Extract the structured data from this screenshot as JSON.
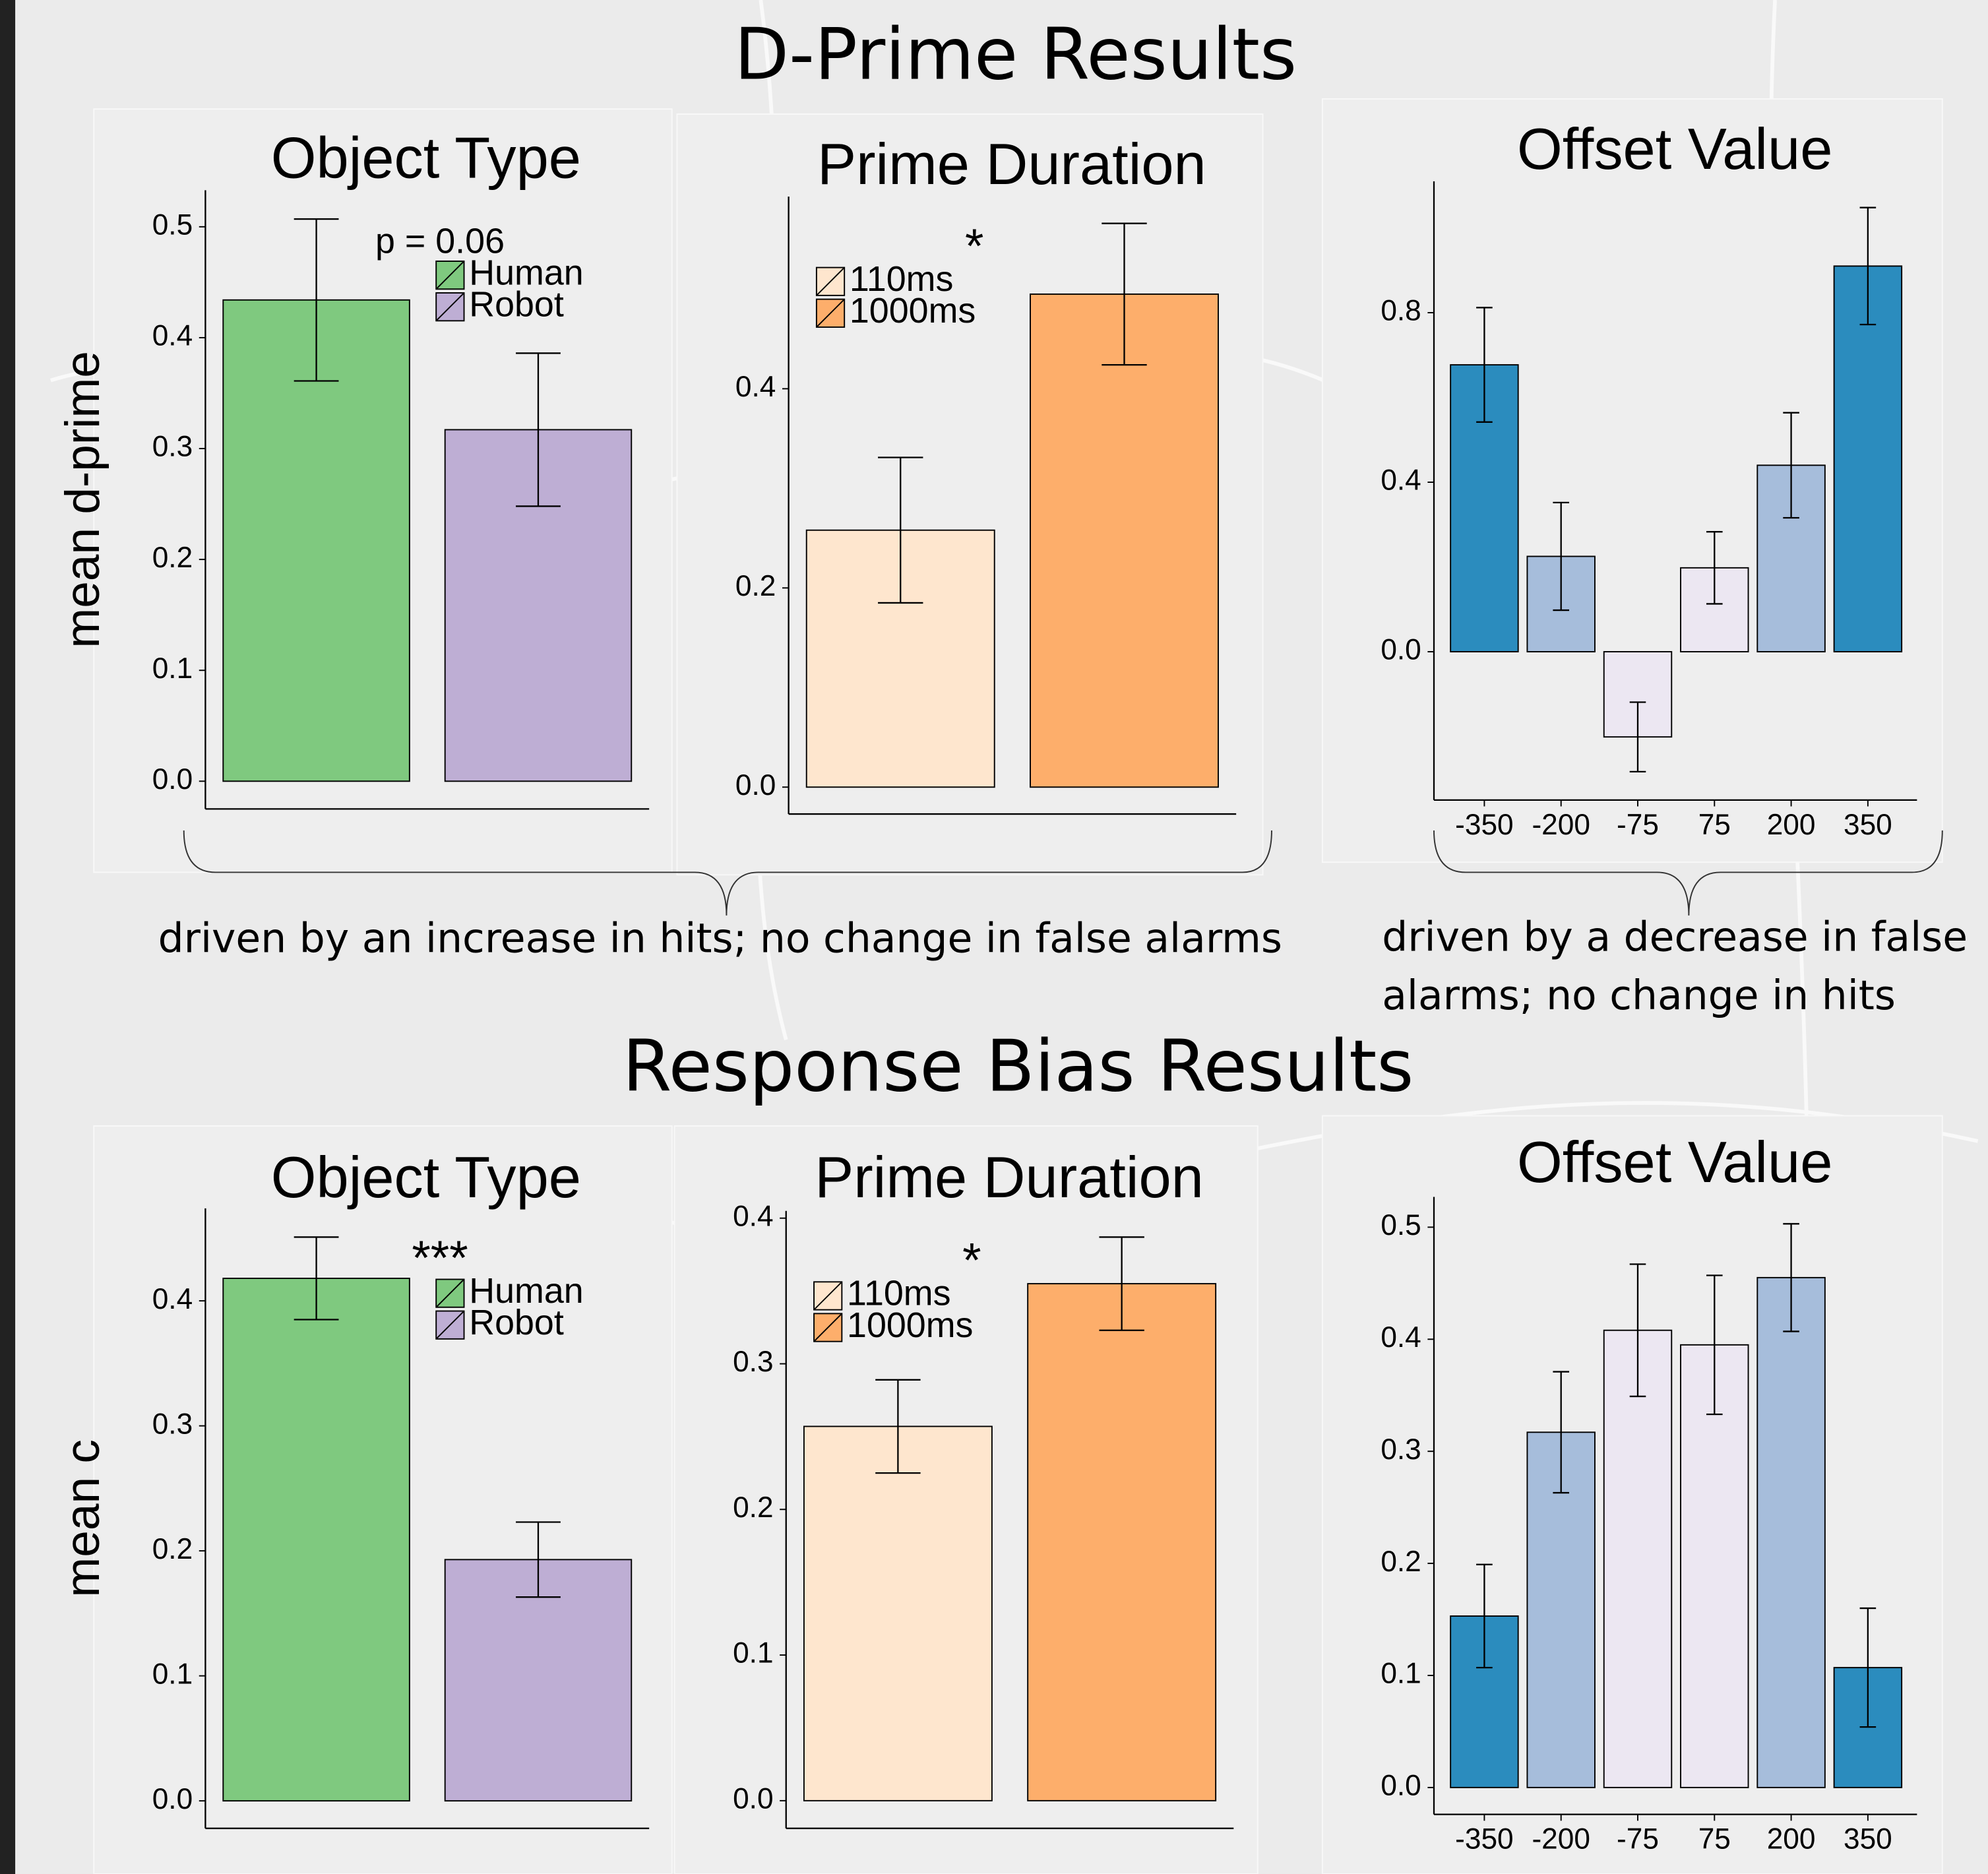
{
  "headings": [
    "D-Prime Results",
    "Response Bias Results"
  ],
  "notes": [
    {
      "lines": [
        "driven by an increase in hits; no change in false alarms"
      ]
    },
    {
      "lines": [
        "driven by a decrease in false",
        "alarms; no change in hits"
      ]
    }
  ],
  "chart_data": [
    {
      "type": "bar",
      "title": "Object Type",
      "ylabel": "mean d-prime",
      "annotation": "p = 0.06",
      "categories": [
        "Human",
        "Robot"
      ],
      "values": [
        0.434,
        0.317
      ],
      "errors": [
        0.073,
        0.069
      ],
      "colors": [
        "#7fc97f",
        "#beaed4"
      ],
      "legend": "top-right",
      "ylim": [
        -0.025,
        0.533
      ],
      "yticks": [
        {
          "value": 0,
          "label": "0.0"
        },
        0.1,
        0.2,
        0.3,
        0.4,
        0.5
      ]
    },
    {
      "type": "bar",
      "title": "Prime Duration",
      "annotation": "*",
      "categories": [
        "110ms",
        "1000ms"
      ],
      "values": [
        0.258,
        0.495
      ],
      "errors": [
        0.073,
        0.071
      ],
      "colors": [
        "#fee6ce",
        "#fdae6b"
      ],
      "legend": "top-left",
      "ylim": [
        -0.027,
        0.593
      ],
      "yticks": [
        {
          "value": 0,
          "label": "0.0"
        },
        0.2,
        0.4
      ]
    },
    {
      "type": "bar",
      "title": "Offset Value",
      "categories": [
        "-350",
        "-200",
        "-75",
        "75",
        "200",
        "350"
      ],
      "values": [
        0.677,
        0.225,
        -0.201,
        0.198,
        0.44,
        0.91
      ],
      "errors": [
        0.135,
        0.127,
        0.082,
        0.085,
        0.124,
        0.138
      ],
      "colors": [
        "#2b8cbe",
        "#a6bddb",
        "#ece7f2",
        "#ece7f2",
        "#a6bddb",
        "#2b8cbe"
      ],
      "ylim": [
        -0.35,
        1.11
      ],
      "yticks": [
        {
          "value": 0,
          "label": "0.0"
        },
        0.4,
        0.8
      ]
    },
    {
      "type": "bar",
      "title": "Object Type",
      "ylabel": "mean c",
      "annotation": "***",
      "categories": [
        "Human",
        "Robot"
      ],
      "values": [
        0.418,
        0.193
      ],
      "errors": [
        0.033,
        0.03
      ],
      "colors": [
        "#7fc97f",
        "#beaed4"
      ],
      "legend": "top-right",
      "ylim": [
        -0.022,
        0.474
      ],
      "yticks": [
        {
          "value": 0,
          "label": "0.0"
        },
        0.1,
        0.2,
        0.3,
        0.4
      ]
    },
    {
      "type": "bar",
      "title": "Prime Duration",
      "annotation": "*",
      "categories": [
        "110ms",
        "1000ms"
      ],
      "values": [
        0.257,
        0.355
      ],
      "errors": [
        0.032,
        0.032
      ],
      "colors": [
        "#fee6ce",
        "#fdae6b"
      ],
      "legend": "top-left",
      "ylim": [
        -0.019,
        0.405
      ],
      "yticks": [
        {
          "value": 0,
          "label": "0.0"
        },
        0.1,
        0.2,
        0.3,
        0.4
      ]
    },
    {
      "type": "bar",
      "title": "Offset Value",
      "categories": [
        "-350",
        "-200",
        "-75",
        "75",
        "200",
        "350"
      ],
      "values": [
        0.153,
        0.317,
        0.408,
        0.395,
        0.455,
        0.107
      ],
      "errors": [
        0.046,
        0.054,
        0.059,
        0.062,
        0.048,
        0.053
      ],
      "colors": [
        "#2b8cbe",
        "#a6bddb",
        "#ece7f2",
        "#ece7f2",
        "#a6bddb",
        "#2b8cbe"
      ],
      "ylim": [
        -0.024,
        0.527
      ],
      "yticks": [
        {
          "value": 0,
          "label": "0.0"
        },
        0.1,
        0.2,
        0.3,
        0.4,
        0.5
      ]
    }
  ]
}
